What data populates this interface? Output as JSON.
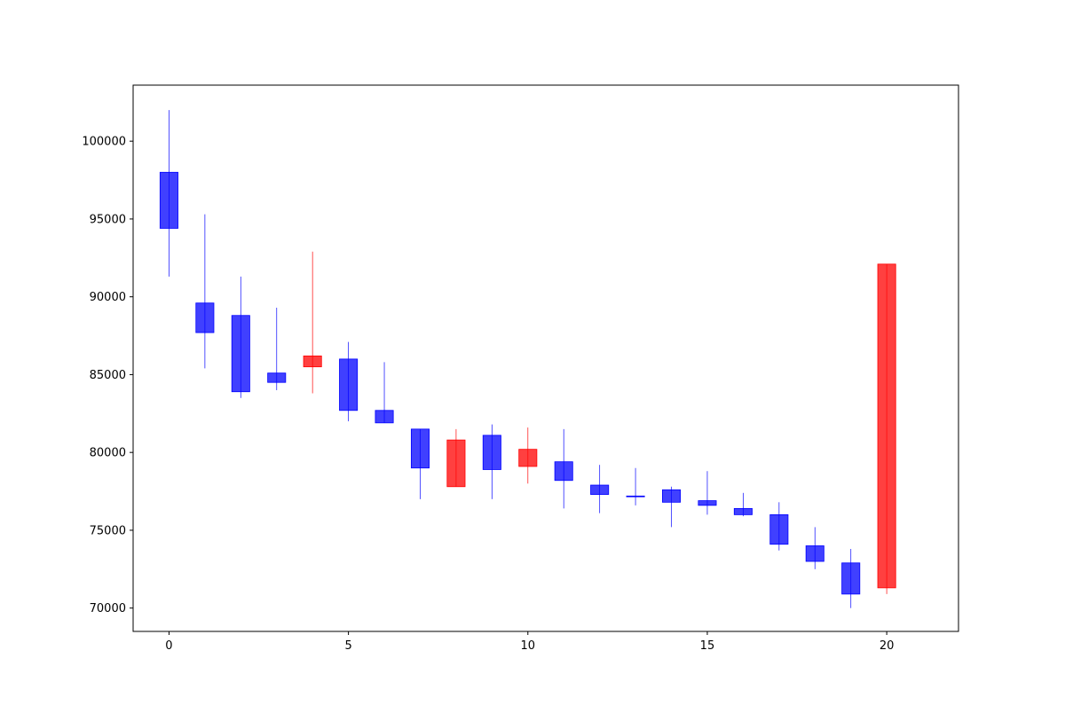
{
  "chart_data": {
    "type": "candlestick",
    "title": "",
    "xlabel": "",
    "ylabel": "",
    "xlim": [
      -1,
      22
    ],
    "ylim": [
      68500,
      103600
    ],
    "x_ticks": [
      0,
      5,
      10,
      15,
      20
    ],
    "y_ticks": [
      70000,
      75000,
      80000,
      85000,
      90000,
      95000,
      100000
    ],
    "grid": false,
    "legend": "none",
    "colors": {
      "up": "#ff0000",
      "down": "#0000ff",
      "axes": "#000000"
    },
    "candles": [
      {
        "x": 0,
        "open": 98000,
        "high": 102000,
        "low": 91300,
        "close": 94400
      },
      {
        "x": 1,
        "open": 89600,
        "high": 95300,
        "low": 85400,
        "close": 87700
      },
      {
        "x": 2,
        "open": 88800,
        "high": 91300,
        "low": 83500,
        "close": 83900
      },
      {
        "x": 3,
        "open": 85100,
        "high": 89300,
        "low": 84000,
        "close": 84500
      },
      {
        "x": 4,
        "open": 85500,
        "high": 92900,
        "low": 83800,
        "close": 86200
      },
      {
        "x": 5,
        "open": 86000,
        "high": 87100,
        "low": 82000,
        "close": 82700
      },
      {
        "x": 6,
        "open": 82700,
        "high": 85800,
        "low": 81900,
        "close": 81900
      },
      {
        "x": 7,
        "open": 81500,
        "high": 81500,
        "low": 77000,
        "close": 79000
      },
      {
        "x": 8,
        "open": 77800,
        "high": 81500,
        "low": 77800,
        "close": 80800
      },
      {
        "x": 9,
        "open": 81100,
        "high": 81800,
        "low": 77000,
        "close": 78900
      },
      {
        "x": 10,
        "open": 79100,
        "high": 81600,
        "low": 78000,
        "close": 80200
      },
      {
        "x": 11,
        "open": 79400,
        "high": 81500,
        "low": 76400,
        "close": 78200
      },
      {
        "x": 12,
        "open": 77900,
        "high": 79200,
        "low": 76100,
        "close": 77300
      },
      {
        "x": 13,
        "open": 77200,
        "high": 79000,
        "low": 76600,
        "close": 77150
      },
      {
        "x": 14,
        "open": 77600,
        "high": 77800,
        "low": 75200,
        "close": 76800
      },
      {
        "x": 15,
        "open": 76900,
        "high": 78800,
        "low": 76000,
        "close": 76600
      },
      {
        "x": 16,
        "open": 76400,
        "high": 77400,
        "low": 75900,
        "close": 76000
      },
      {
        "x": 17,
        "open": 76000,
        "high": 76800,
        "low": 73700,
        "close": 74100
      },
      {
        "x": 18,
        "open": 74000,
        "high": 75200,
        "low": 72500,
        "close": 73000
      },
      {
        "x": 19,
        "open": 72900,
        "high": 73800,
        "low": 70000,
        "close": 70900
      },
      {
        "x": 20,
        "open": 71300,
        "high": 92100,
        "low": 70900,
        "close": 92100
      }
    ]
  }
}
